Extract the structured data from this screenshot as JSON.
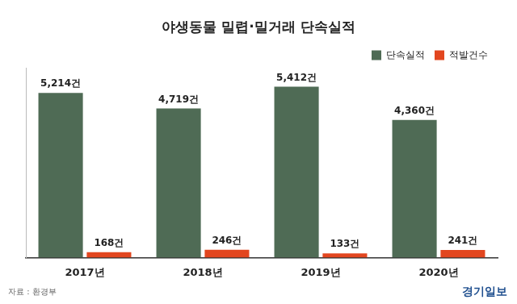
{
  "chart_data": {
    "type": "bar",
    "title": "야생동물 밀렵·밀거래 단속실적",
    "categories": [
      "2017년",
      "2018년",
      "2019년",
      "2020년"
    ],
    "series": [
      {
        "name": "단속실적",
        "color": "#4f6b55",
        "values": [
          5214,
          4719,
          5412,
          4360
        ],
        "value_labels": [
          "5,214건",
          "4,719건",
          "5,412건",
          "4,360건"
        ]
      },
      {
        "name": "적발건수",
        "color": "#e2461f",
        "values": [
          168,
          246,
          133,
          241
        ],
        "value_labels": [
          "168건",
          "246건",
          "133건",
          "241건"
        ]
      }
    ],
    "ylim": [
      0,
      6000
    ],
    "grid": false,
    "legend": "top right",
    "data_labels": true,
    "tick_labels": "x",
    "source": "자료 : 환경부",
    "credit": "경기일보"
  }
}
